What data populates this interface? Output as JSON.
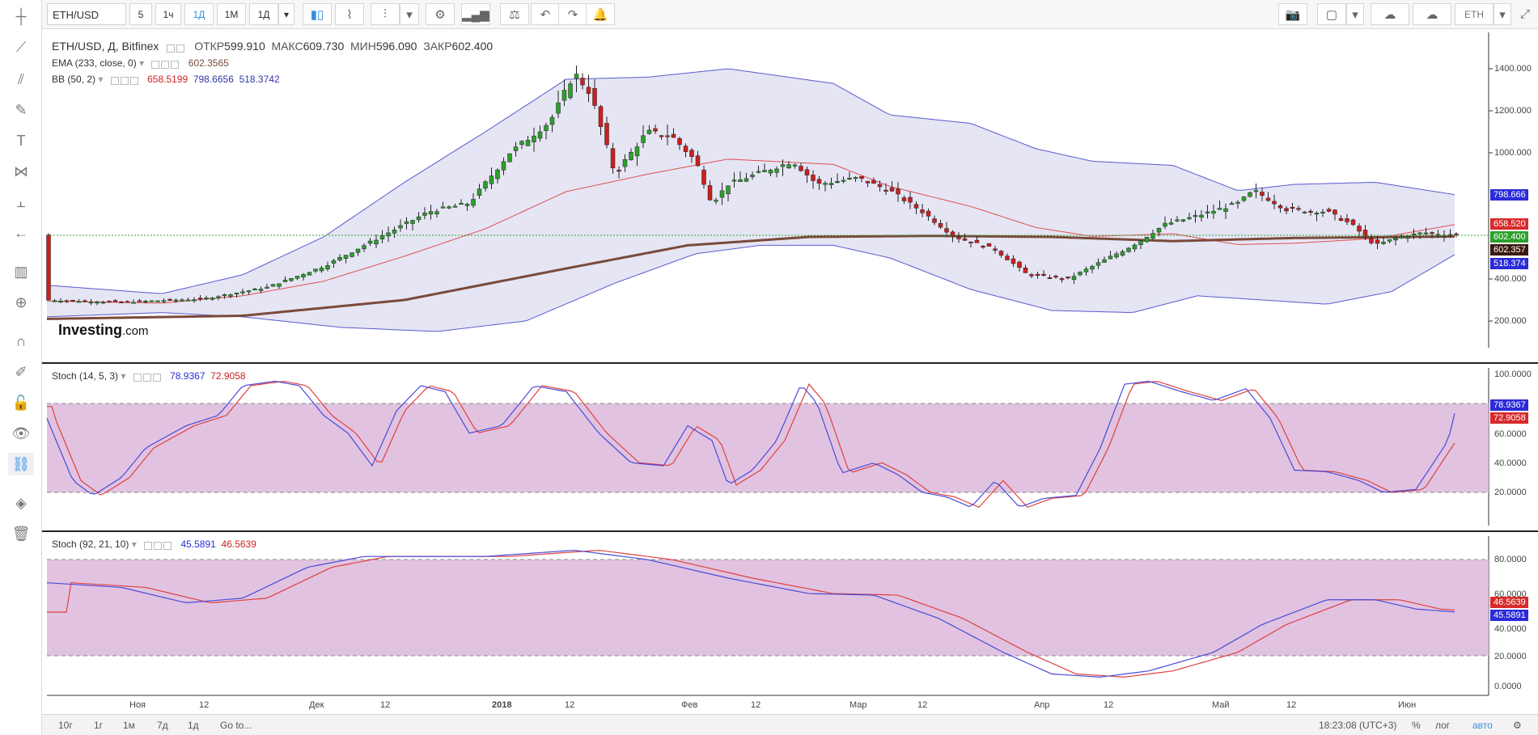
{
  "symbol": "ETH/USD",
  "timeframes": [
    "5",
    "1ч",
    "1Д",
    "1М",
    "1Д"
  ],
  "active_timeframe": "1Д",
  "right_symbol": "ETH",
  "main_pane": {
    "title": "ETH/USD, Д, Bitfinex",
    "ohlc": {
      "open_label": "ОТКР",
      "open": "599.910",
      "high_label": "МАКС",
      "high": "609.730",
      "low_label": "МИН",
      "low": "596.090",
      "close_label": "ЗАКР",
      "close": "602.400"
    },
    "ema_label": "EMA (233, close, 0)",
    "ema_value": "602.3565",
    "bb_label": "BB (50, 2)",
    "bb_values": [
      "658.5199",
      "798.6656",
      "518.3742"
    ],
    "logo": "Investing",
    "logo_suffix": ".com",
    "y_ticks": [
      "1400.000",
      "1200.000",
      "1000.000",
      "800.000",
      "400.000",
      "200.000"
    ],
    "tags": {
      "bb_upper": "798.666",
      "bb_mid": "658.520",
      "close": "602.400",
      "ema": "602.357",
      "bb_lower": "518.374"
    }
  },
  "stoch1": {
    "label": "Stoch (14, 5, 3)",
    "k": "78.9367",
    "d": "72.9058",
    "y_ticks": [
      "100.0000",
      "60.0000",
      "40.0000",
      "20.0000"
    ]
  },
  "stoch2": {
    "label": "Stoch (92, 21, 10)",
    "k": "45.5891",
    "d": "46.5639",
    "y_ticks": [
      "80.0000",
      "60.0000",
      "40.0000",
      "20.0000",
      "0.0000"
    ],
    "tags": {
      "d": "46.5639",
      "k": "45.5891"
    }
  },
  "x_axis": [
    "Ноя",
    "12",
    "Дек",
    "12",
    "2018",
    "12",
    "Фев",
    "12",
    "Мар",
    "12",
    "Апр",
    "12",
    "Май",
    "12",
    "Июн"
  ],
  "bottom": {
    "ranges": [
      "10г",
      "1г",
      "1м",
      "7д",
      "1д"
    ],
    "goto": "Go to...",
    "time": "18:23:08 (UTC+3)",
    "percent": "%",
    "log": "лог",
    "auto": "авто"
  },
  "colors": {
    "bull": "#2ca02c",
    "bear": "#cc1f1f",
    "bb_fill": "#dcdcf0",
    "bb_line": "#5a5ad0",
    "bb_mid": "#e05050",
    "ema": "#7a4a3a",
    "stoch_fill": "#dcb8dc",
    "k_line": "#4a4ad8",
    "d_line": "#e04040",
    "accent": "#3a8de0"
  }
}
